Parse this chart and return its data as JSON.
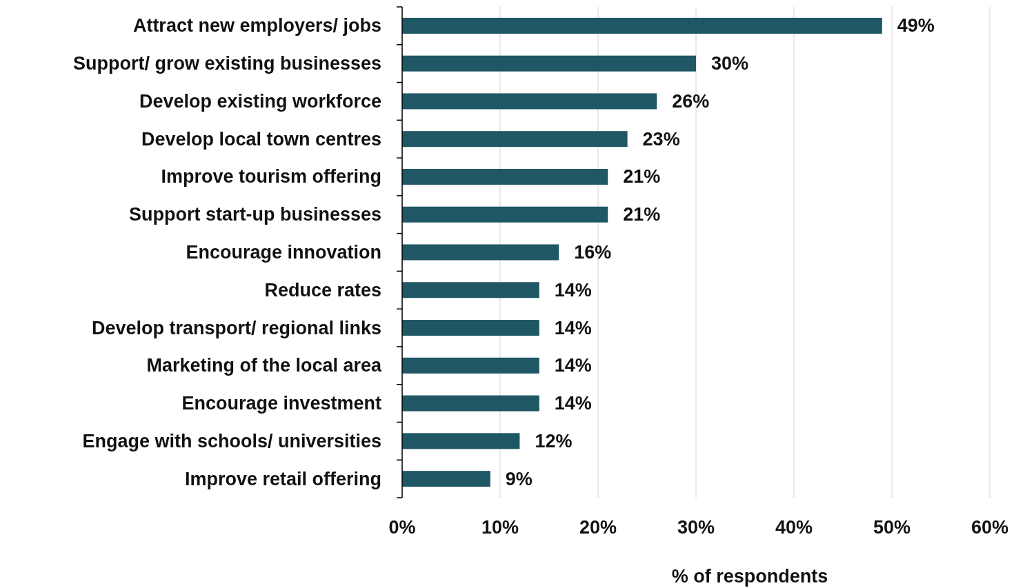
{
  "chart_data": {
    "type": "bar",
    "orientation": "horizontal",
    "xlabel": "% of respondents",
    "categories": [
      "Attract new employers/ jobs",
      "Support/ grow existing businesses",
      "Develop existing workforce",
      "Develop local town centres",
      "Improve tourism offering",
      "Support start-up businesses",
      "Encourage innovation",
      "Reduce rates",
      "Develop transport/ regional links",
      "Marketing of the local area",
      "Encourage investment",
      "Engage with schools/ universities",
      "Improve retail offering"
    ],
    "values": [
      49,
      30,
      26,
      23,
      21,
      21,
      16,
      14,
      14,
      14,
      14,
      12,
      9
    ],
    "value_labels": [
      "49%",
      "30%",
      "26%",
      "23%",
      "21%",
      "21%",
      "16%",
      "14%",
      "14%",
      "14%",
      "14%",
      "12%",
      "9%"
    ],
    "color": "#1f5765",
    "xlim": [
      0,
      60
    ],
    "xticks": [
      {
        "value": 0,
        "label": "0%"
      },
      {
        "value": 10,
        "label": "10%"
      },
      {
        "value": 20,
        "label": "20%"
      },
      {
        "value": 30,
        "label": "30%"
      },
      {
        "value": 40,
        "label": "40%"
      },
      {
        "value": 50,
        "label": "50%"
      },
      {
        "value": 60,
        "label": "60%"
      }
    ],
    "grid": "x"
  }
}
